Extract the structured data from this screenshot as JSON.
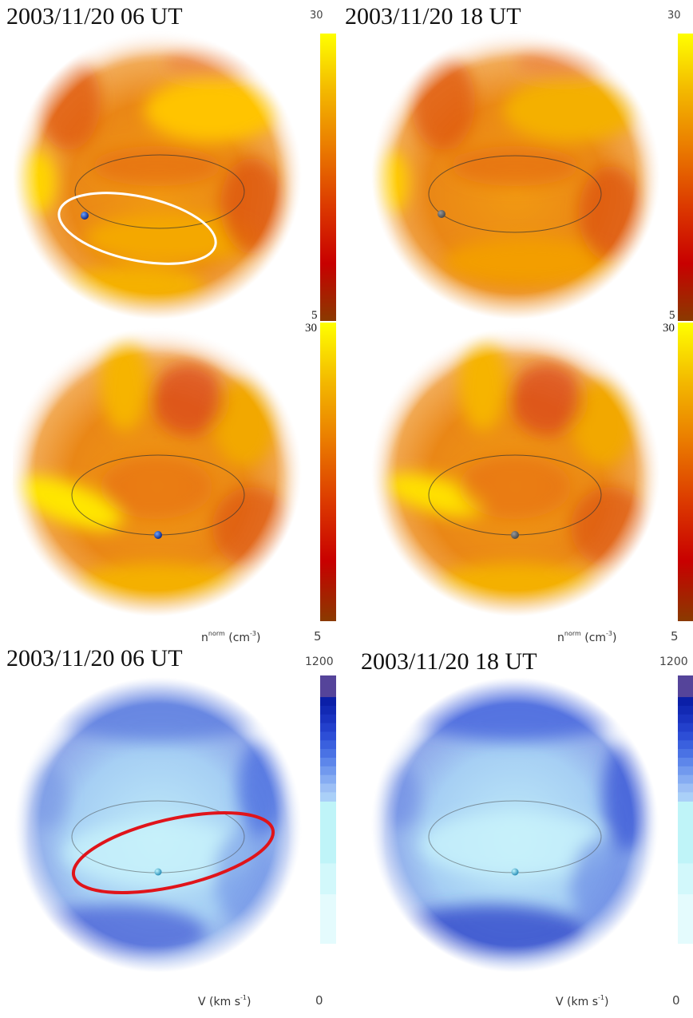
{
  "titles": {
    "top_left": "2003/11/20  06 UT",
    "top_right": "2003/11/20  18 UT",
    "bottom_left": "2003/11/20  06 UT",
    "bottom_right": "2003/11/20  18 UT"
  },
  "density_colorbar": {
    "max_label": "30",
    "min_label": "5",
    "colors": [
      "#ffff00",
      "#f3b800",
      "#ea7a00",
      "#dc3a00",
      "#c80000",
      "#8a3a00"
    ]
  },
  "density_unit": {
    "symbol": "n",
    "superscript": "norm",
    "unit": "(cm",
    "exponent": "-3",
    "close": ")"
  },
  "velocity_colorbar": {
    "max_label": "1200",
    "min_label": "0",
    "colors": [
      "#55449a",
      "#0b1fa8",
      "#2b45d6",
      "#6080e8",
      "#9ab8f0",
      "#bff4f8",
      "#e4fbfd"
    ]
  },
  "velocity_unit": {
    "symbol": "V",
    "unit": "(km s",
    "exponent": "-1",
    "close": ")"
  },
  "annotations": {
    "top_left_ellipse_color": "#ffffff",
    "bottom_left_ellipse_color": "#e0141a"
  }
}
